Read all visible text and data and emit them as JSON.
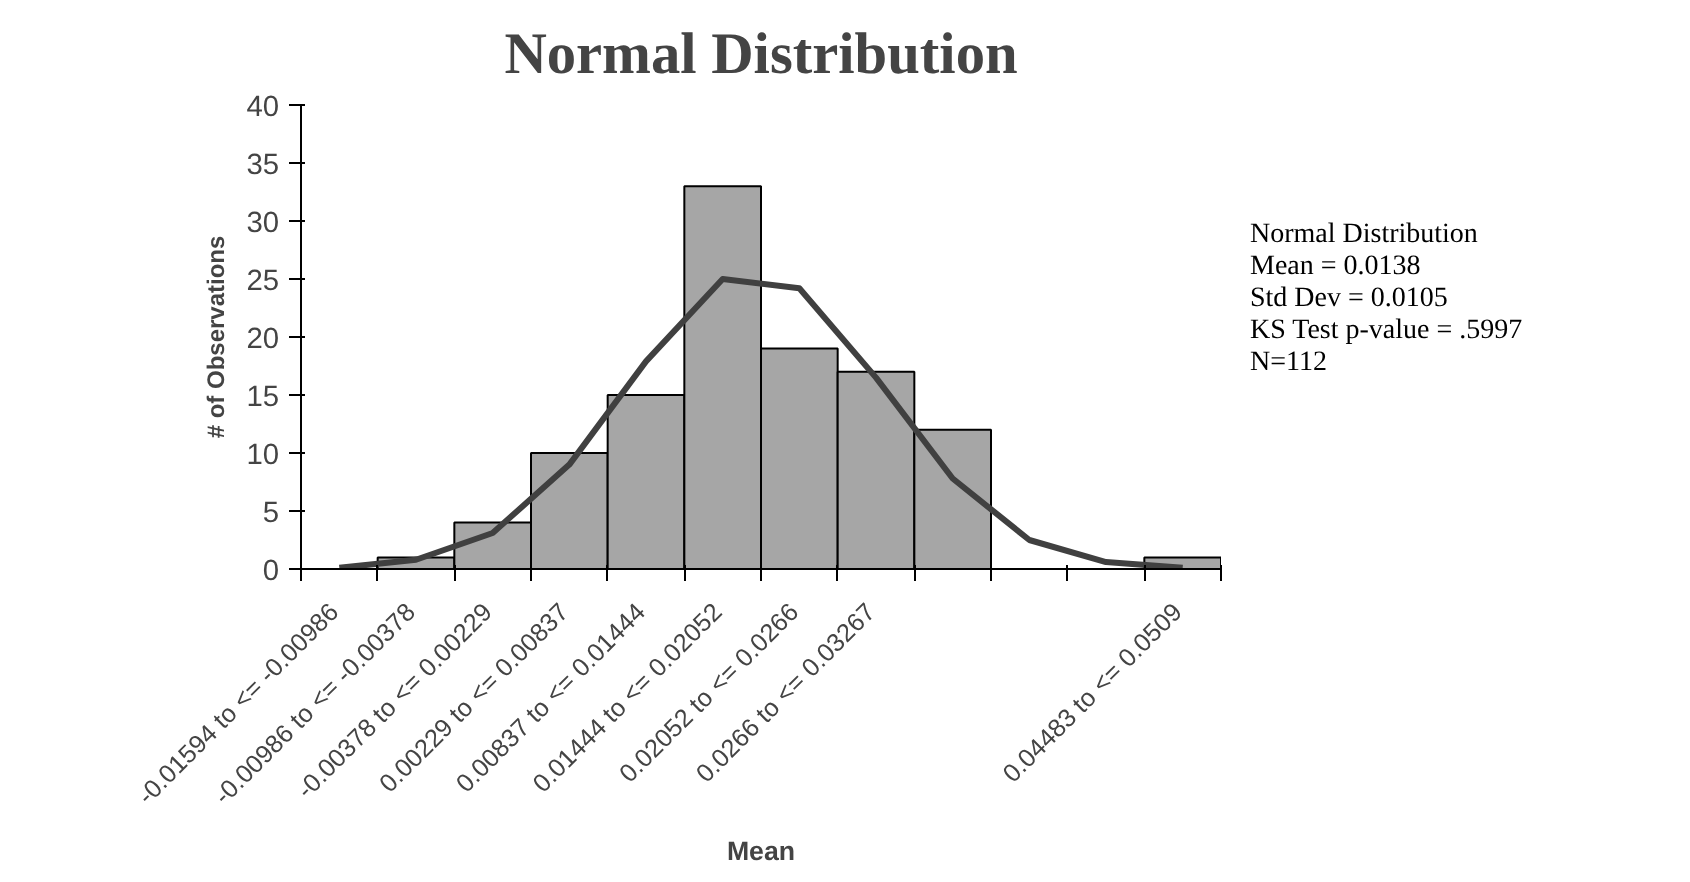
{
  "chart_data": {
    "type": "bar",
    "title": "Normal Distribution",
    "xlabel": "Mean",
    "ylabel": "# of Observations",
    "categories": [
      "-0.01594  to <= -0.00986",
      "-0.00986  to <= -0.00378",
      "-0.00378  to <= 0.00229",
      "0.00229  to <= 0.00837",
      "0.00837  to <= 0.01444",
      "0.01444  to <= 0.02052",
      "0.02052  to <= 0.0266",
      "0.0266  to <= 0.03267",
      null,
      null,
      null,
      "0.04483  to <= 0.0509"
    ],
    "series": [
      {
        "color": "#a6a6a6",
        "values": [
          0,
          1,
          4,
          10,
          15,
          33,
          19,
          17,
          12,
          0,
          0,
          1
        ]
      },
      {
        "type": "line",
        "color": "#404040",
        "values": [
          0.1,
          0.8,
          3.1,
          9,
          17.9,
          25,
          24.2,
          16.5,
          7.8,
          2.5,
          0.6,
          0.1
        ]
      }
    ],
    "ylim": [
      0,
      40
    ],
    "yticks": [
      0,
      5,
      10,
      15,
      20,
      25,
      30,
      35,
      40
    ],
    "grid": false,
    "annotations": [
      "Normal Distribution",
      "Mean = 0.0138",
      "Std Dev = 0.0105",
      "KS Test p-value = .5997",
      "N=112"
    ]
  }
}
